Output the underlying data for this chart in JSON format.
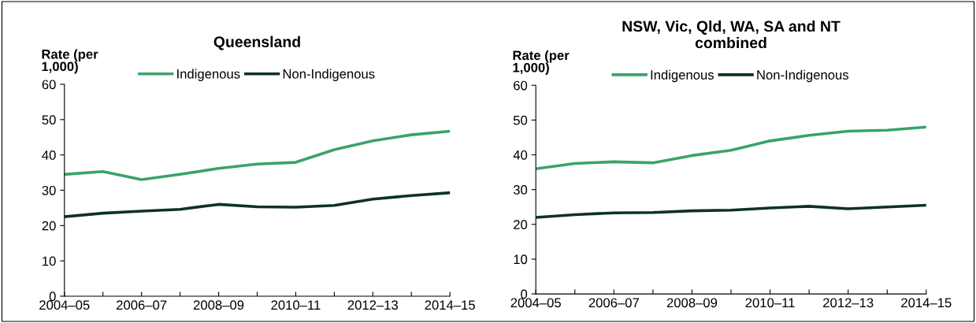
{
  "chart_data": [
    {
      "type": "line",
      "title": "Queensland",
      "ylabel": "Rate (per\n1,000)",
      "categories": [
        "2004–05",
        null,
        "2006–07",
        null,
        "2008–09",
        null,
        "2010–11",
        null,
        "2012–13",
        null,
        "2014–15"
      ],
      "series": [
        {
          "name": "Indigenous",
          "color": "#3aa36b",
          "values": [
            34.5,
            35.3,
            33,
            34.5,
            36.2,
            37.4,
            37.9,
            41.5,
            44,
            45.7,
            46.7
          ]
        },
        {
          "name": "Non-Indigenous",
          "color": "#0d3321",
          "values": [
            22.5,
            23.5,
            24.1,
            24.6,
            26,
            25.3,
            25.2,
            25.7,
            27.5,
            28.5,
            29.3
          ]
        }
      ],
      "ylim": [
        0,
        60
      ],
      "yticks": [
        0,
        10,
        20,
        30,
        40,
        50,
        60
      ],
      "grid": false,
      "legend": "top",
      "marker": "none",
      "line_style": "solid"
    },
    {
      "type": "line",
      "title": "NSW, Vic, Qld, WA, SA and NT\ncombined",
      "ylabel": "Rate (per\n1,000)",
      "categories": [
        "2004–05",
        null,
        "2006–07",
        null,
        "2008–09",
        null,
        "2010–11",
        null,
        "2012–13",
        null,
        "2014–15"
      ],
      "series": [
        {
          "name": "Indigenous",
          "color": "#3aa36b",
          "values": [
            36,
            37.5,
            38,
            37.7,
            39.8,
            41.3,
            44,
            45.6,
            46.8,
            47.1,
            48
          ]
        },
        {
          "name": "Non-Indigenous",
          "color": "#0d3321",
          "values": [
            22,
            22.8,
            23.3,
            23.4,
            23.9,
            24.1,
            24.7,
            25.2,
            24.5,
            25,
            25.5
          ]
        }
      ],
      "ylim": [
        0,
        60
      ],
      "yticks": [
        0,
        10,
        20,
        30,
        40,
        50,
        60
      ],
      "grid": false,
      "legend": "top",
      "marker": "none",
      "line_style": "solid"
    }
  ]
}
